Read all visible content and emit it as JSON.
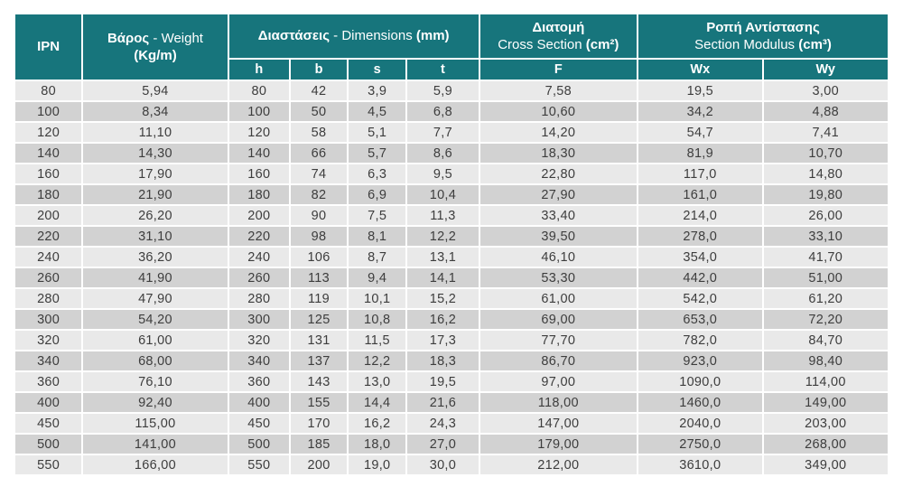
{
  "colors": {
    "header_teal": "#17757C",
    "row_light": "#e9e9e9",
    "row_dark": "#d2d2d2",
    "body_text": "#3d3d3d",
    "header_text": "#ffffff"
  },
  "table": {
    "header": {
      "ipn": "IPN",
      "weight_gr": "Βάρος",
      "weight_en": " - Weight",
      "weight_unit": "(Kg/m)",
      "dim_gr": "Διαστάσεις",
      "dim_en": " - Dimensions ",
      "dim_unit": "(mm)",
      "cs_gr": "Διατομή",
      "cs_en": "Cross Section ",
      "cs_unit": "(cm²)",
      "sm_gr": "Ροπή Αντίστασης",
      "sm_en": "Section Modulus ",
      "sm_unit": "(cm³)",
      "sub_h": "h",
      "sub_b": "b",
      "sub_s": "s",
      "sub_t": "t",
      "sub_f": "F",
      "sub_wx": "Wx",
      "sub_wy": "Wy"
    },
    "rows": [
      [
        "80",
        "5,94",
        "80",
        "42",
        "3,9",
        "5,9",
        "7,58",
        "19,5",
        "3,00"
      ],
      [
        "100",
        "8,34",
        "100",
        "50",
        "4,5",
        "6,8",
        "10,60",
        "34,2",
        "4,88"
      ],
      [
        "120",
        "11,10",
        "120",
        "58",
        "5,1",
        "7,7",
        "14,20",
        "54,7",
        "7,41"
      ],
      [
        "140",
        "14,30",
        "140",
        "66",
        "5,7",
        "8,6",
        "18,30",
        "81,9",
        "10,70"
      ],
      [
        "160",
        "17,90",
        "160",
        "74",
        "6,3",
        "9,5",
        "22,80",
        "117,0",
        "14,80"
      ],
      [
        "180",
        "21,90",
        "180",
        "82",
        "6,9",
        "10,4",
        "27,90",
        "161,0",
        "19,80"
      ],
      [
        "200",
        "26,20",
        "200",
        "90",
        "7,5",
        "11,3",
        "33,40",
        "214,0",
        "26,00"
      ],
      [
        "220",
        "31,10",
        "220",
        "98",
        "8,1",
        "12,2",
        "39,50",
        "278,0",
        "33,10"
      ],
      [
        "240",
        "36,20",
        "240",
        "106",
        "8,7",
        "13,1",
        "46,10",
        "354,0",
        "41,70"
      ],
      [
        "260",
        "41,90",
        "260",
        "113",
        "9,4",
        "14,1",
        "53,30",
        "442,0",
        "51,00"
      ],
      [
        "280",
        "47,90",
        "280",
        "119",
        "10,1",
        "15,2",
        "61,00",
        "542,0",
        "61,20"
      ],
      [
        "300",
        "54,20",
        "300",
        "125",
        "10,8",
        "16,2",
        "69,00",
        "653,0",
        "72,20"
      ],
      [
        "320",
        "61,00",
        "320",
        "131",
        "11,5",
        "17,3",
        "77,70",
        "782,0",
        "84,70"
      ],
      [
        "340",
        "68,00",
        "340",
        "137",
        "12,2",
        "18,3",
        "86,70",
        "923,0",
        "98,40"
      ],
      [
        "360",
        "76,10",
        "360",
        "143",
        "13,0",
        "19,5",
        "97,00",
        "1090,0",
        "114,00"
      ],
      [
        "400",
        "92,40",
        "400",
        "155",
        "14,4",
        "21,6",
        "118,00",
        "1460,0",
        "149,00"
      ],
      [
        "450",
        "115,00",
        "450",
        "170",
        "16,2",
        "24,3",
        "147,00",
        "2040,0",
        "203,00"
      ],
      [
        "500",
        "141,00",
        "500",
        "185",
        "18,0",
        "27,0",
        "179,00",
        "2750,0",
        "268,00"
      ],
      [
        "550",
        "166,00",
        "550",
        "200",
        "19,0",
        "30,0",
        "212,00",
        "3610,0",
        "349,00"
      ]
    ]
  }
}
